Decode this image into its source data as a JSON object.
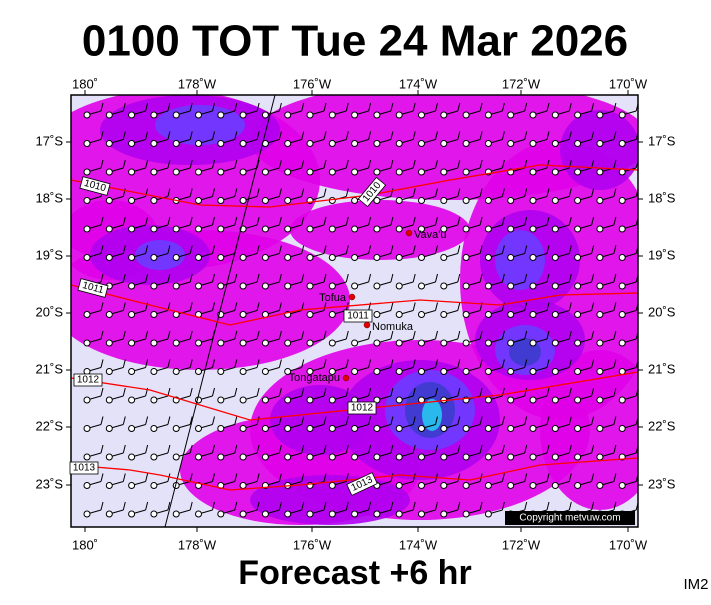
{
  "header": {
    "title": "0100 TOT Tue 24 Mar 2026"
  },
  "map": {
    "lon_labels": [
      "180˚",
      "178˚W",
      "176˚W",
      "174˚W",
      "172˚W",
      "170˚W"
    ],
    "lat_labels": [
      "17˚S",
      "18˚S",
      "19˚S",
      "20˚S",
      "21˚S",
      "22˚S",
      "23˚S"
    ],
    "isobar_labels": [
      "1010",
      "1010",
      "1011",
      "1011",
      "1012",
      "1012",
      "1013",
      "1013"
    ],
    "places": [
      "Vava'u",
      "Tofua",
      "Nomuka",
      "Tongatapu"
    ],
    "copyright": "Copyright metvuw.com"
  },
  "footer": {
    "forecast": "Forecast +6 hr",
    "image_id": "IM2"
  }
}
